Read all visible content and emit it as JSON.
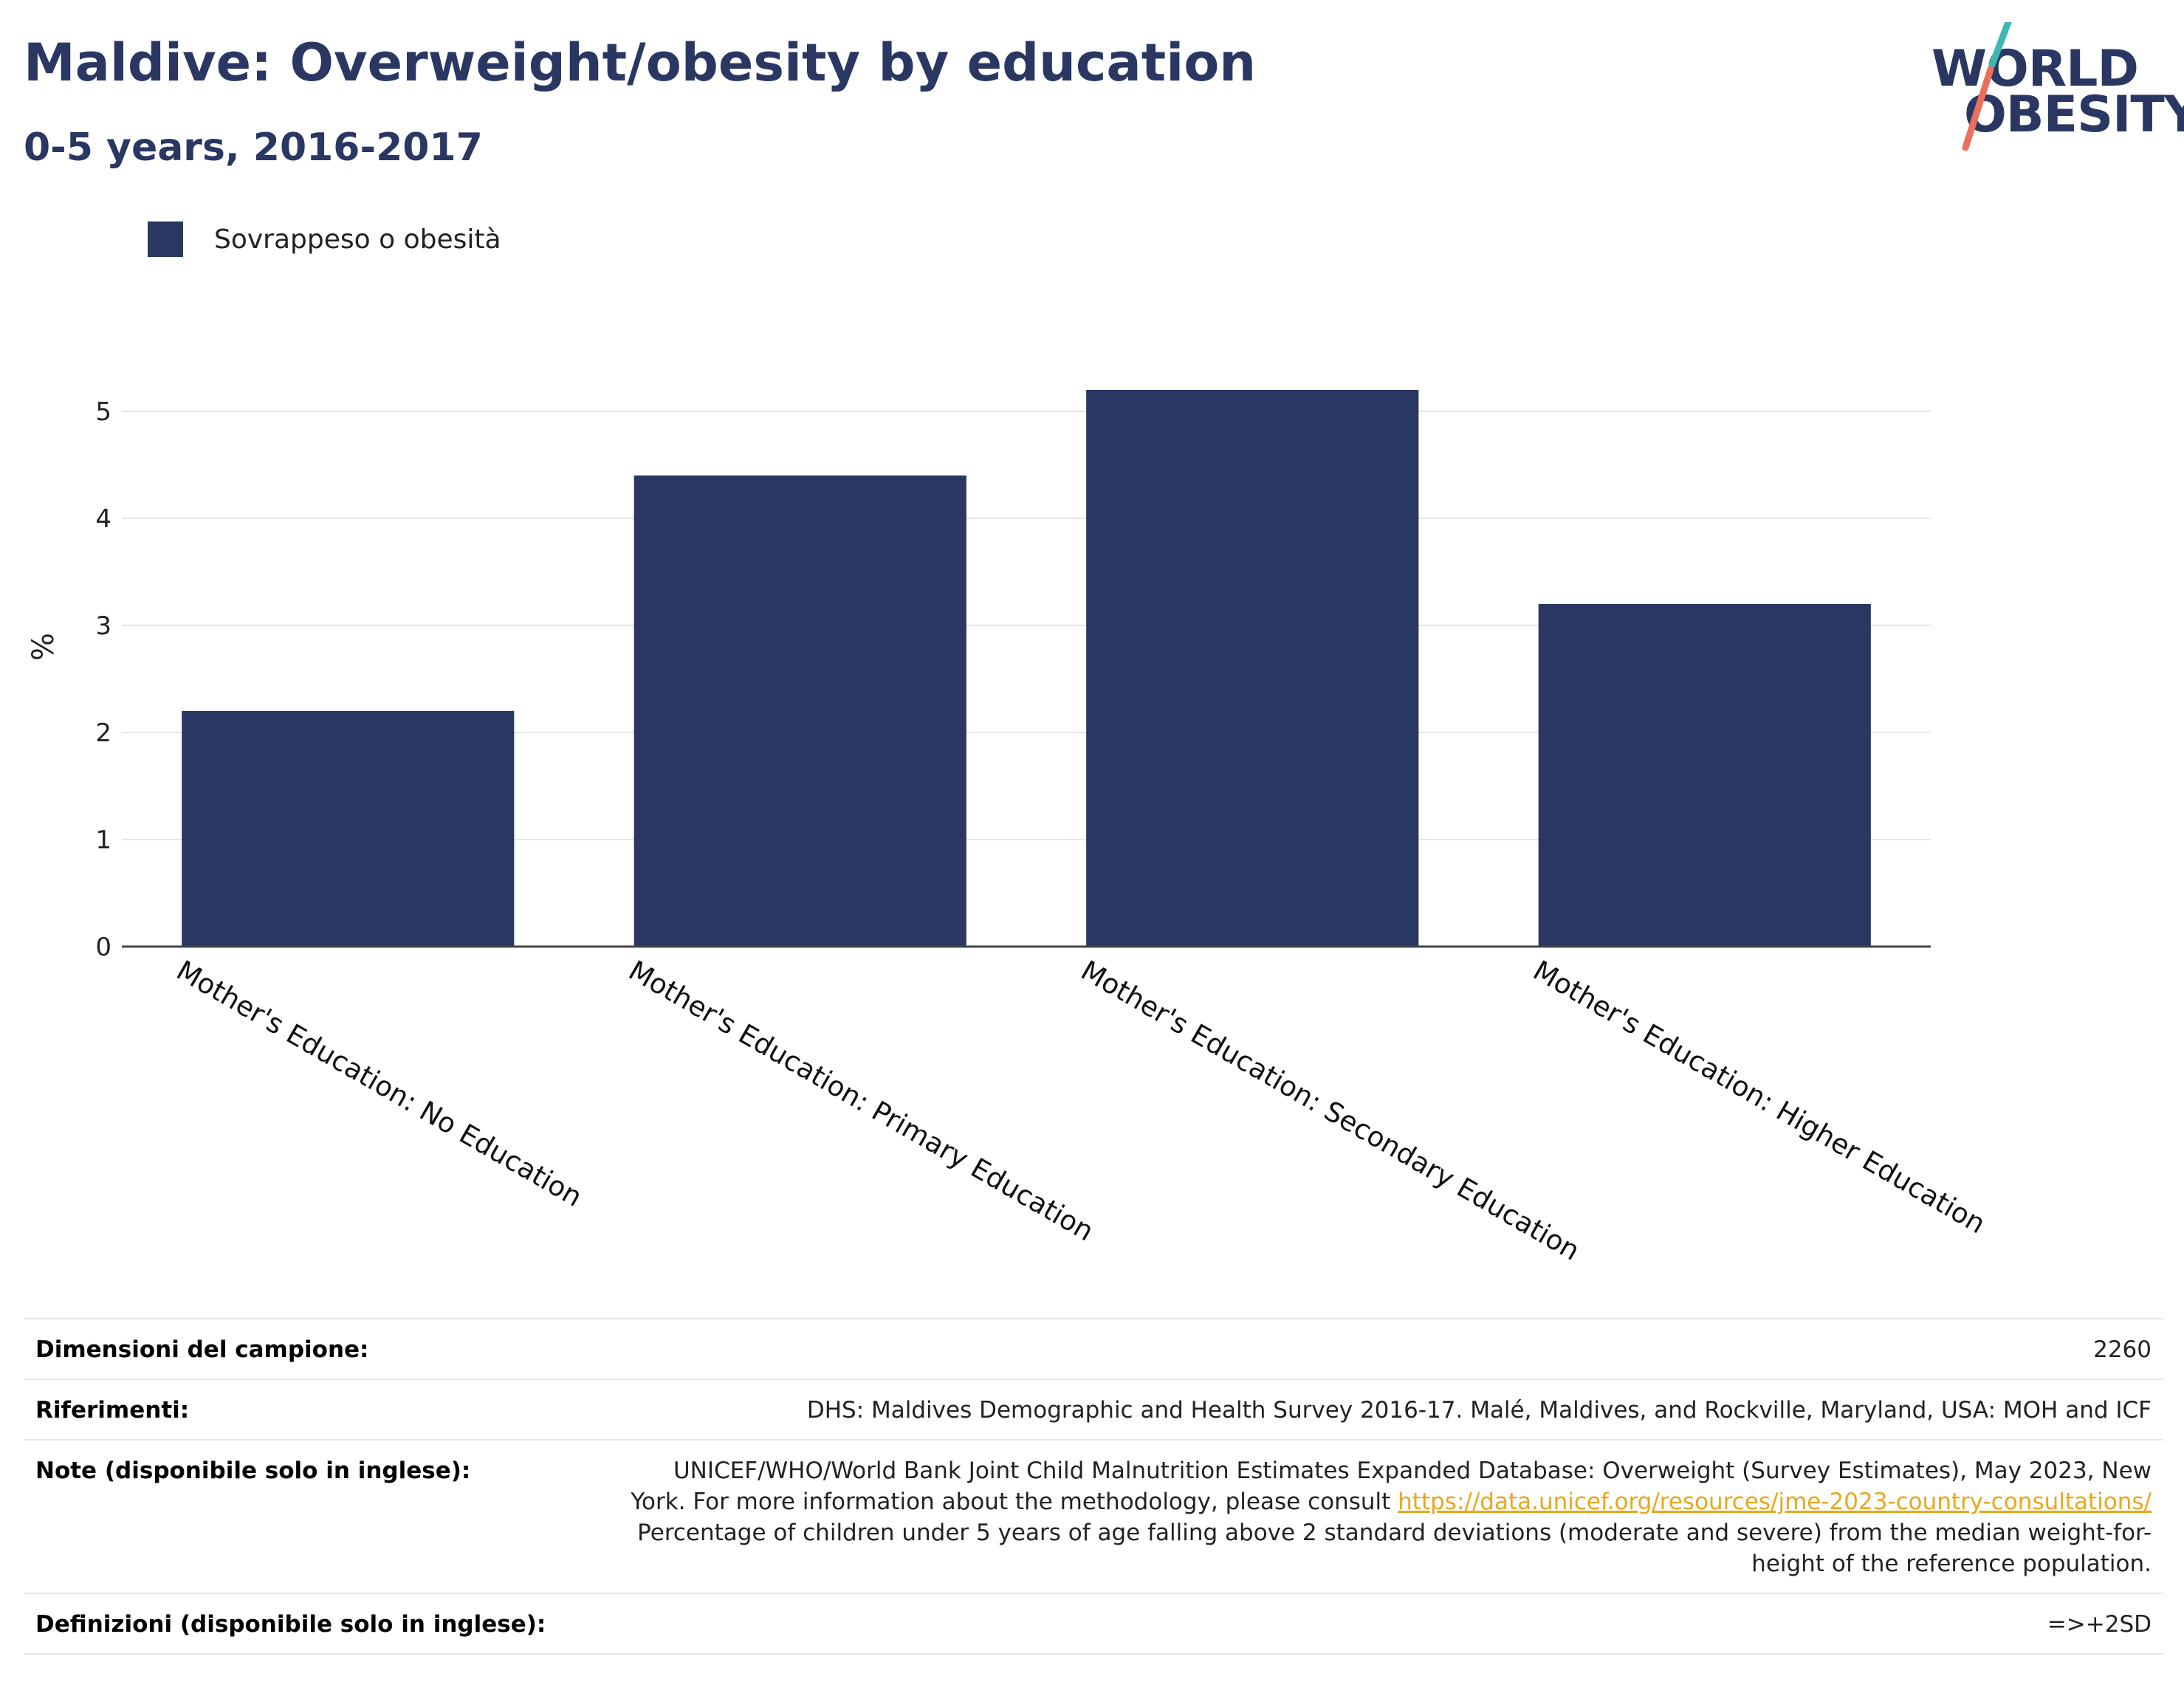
{
  "header": {
    "title": "Maldive: Overweight/obesity by education",
    "subtitle": "0-5 years, 2016-2017"
  },
  "logo": {
    "line1": "WORLD",
    "line2": "OBESITY",
    "colors": {
      "text": "#2a3762",
      "teal": "#3fb8b2",
      "coral": "#e9705b"
    }
  },
  "legend": {
    "label": "Sovrappeso o obesità",
    "color": "#2a3762"
  },
  "chart_data": {
    "type": "bar",
    "categories": [
      "Mother's Education: No Education",
      "Mother's Education: Primary Education",
      "Mother's Education: Secondary Education",
      "Mother's Education: Higher Education"
    ],
    "series": [
      {
        "name": "Sovrappeso o obesità",
        "values": [
          2.2,
          4.4,
          5.2,
          3.2
        ],
        "color": "#2a3762"
      }
    ],
    "ylabel": "%",
    "xlabel": "",
    "ylim": [
      0,
      5.6
    ],
    "yticks": [
      0,
      1,
      2,
      3,
      4,
      5
    ],
    "grid": true,
    "legend_position": "top-left"
  },
  "footer": {
    "rows": [
      {
        "key": "Dimensioni del campione:",
        "value": "2260"
      },
      {
        "key": "Riferimenti:",
        "value": "DHS: Maldives Demographic and Health Survey 2016-17. Malé, Maldives, and Rockville, Maryland, USA: MOH and ICF"
      },
      {
        "key": "Note (disponibile solo in inglese):",
        "value_before": "UNICEF/WHO/World Bank Joint Child Malnutrition Estimates Expanded Database: Overweight (Survey Estimates), May 2023, New York. For more information about the methodology, please consult ",
        "link": "https://data.unicef.org/resources/jme-2023-country-consultations/",
        "value_after": " Percentage of children under 5 years of age falling above 2 standard deviations (moderate and severe) from the median weight-for-height of the reference population."
      },
      {
        "key": "Definizioni (disponibile solo in inglese):",
        "value": "=>+2SD"
      }
    ]
  }
}
